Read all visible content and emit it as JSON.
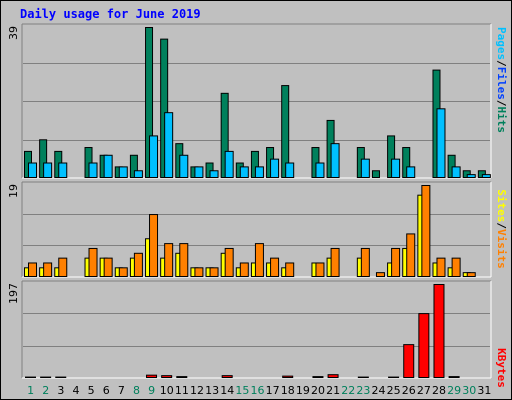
{
  "title": "Daily usage for June 2019",
  "colors": {
    "title": "#0000ff",
    "hits": "#00805c",
    "files": "#0040ff",
    "pages": "#00c0ff",
    "visits": "#ff8000",
    "sites": "#ffff00",
    "kbytes": "#ff0000",
    "day_weekday": "#000000",
    "day_weekend": "#00805c"
  },
  "chart_data": [
    {
      "type": "bar",
      "panel": "hits-files-pages",
      "ymax": 39,
      "ymax_label": "39",
      "side_label": [
        "Pages",
        "/",
        "Files",
        "/",
        "Hits"
      ],
      "categories": [
        "1",
        "2",
        "3",
        "4",
        "5",
        "6",
        "7",
        "8",
        "9",
        "10",
        "11",
        "12",
        "13",
        "14",
        "15",
        "16",
        "17",
        "18",
        "19",
        "20",
        "21",
        "22",
        "23",
        "24",
        "25",
        "26",
        "27",
        "28",
        "29",
        "30",
        "31"
      ],
      "weekend_days": [
        "1",
        "2",
        "8",
        "9",
        "15",
        "16",
        "22",
        "23",
        "29",
        "30"
      ],
      "series": [
        {
          "name": "Hits",
          "values": [
            7,
            10,
            7,
            0,
            8,
            6,
            3,
            6,
            39,
            36,
            9,
            3,
            4,
            22,
            4,
            7,
            8,
            24,
            0,
            8,
            15,
            0,
            8,
            2,
            11,
            8,
            0,
            28,
            6,
            2,
            2
          ]
        },
        {
          "name": "Pages",
          "values": [
            4,
            4,
            4,
            0,
            4,
            6,
            3,
            2,
            11,
            17,
            6,
            3,
            2,
            7,
            3,
            3,
            5,
            4,
            0,
            4,
            9,
            0,
            5,
            0,
            5,
            3,
            0,
            18,
            3,
            1,
            1
          ]
        }
      ]
    },
    {
      "type": "bar",
      "panel": "visits-sites",
      "ymax": 19,
      "ymax_label": "19",
      "side_label": [
        "Sites",
        "/",
        "Visits"
      ],
      "series": [
        {
          "name": "Sites",
          "values": [
            2,
            2,
            2,
            0,
            4,
            4,
            2,
            4,
            8,
            4,
            5,
            2,
            2,
            5,
            2,
            3,
            3,
            2,
            0,
            3,
            4,
            0,
            4,
            0,
            3,
            6,
            17,
            3,
            2,
            1,
            0
          ]
        },
        {
          "name": "Visits",
          "values": [
            3,
            3,
            4,
            0,
            6,
            4,
            2,
            5,
            13,
            7,
            7,
            2,
            2,
            6,
            3,
            7,
            4,
            3,
            0,
            3,
            6,
            0,
            6,
            1,
            6,
            9,
            19,
            4,
            4,
            1,
            0
          ]
        }
      ]
    },
    {
      "type": "bar",
      "panel": "kbytes",
      "ymax": 197,
      "ymax_label": "197",
      "side_label": [
        "KBytes"
      ],
      "series": [
        {
          "name": "KBytes",
          "values": [
            3,
            3,
            3,
            0,
            2,
            2,
            2,
            2,
            7,
            6,
            4,
            2,
            2,
            6,
            2,
            2,
            2,
            5,
            0,
            4,
            8,
            0,
            3,
            2,
            3,
            71,
            136,
            197,
            4,
            2,
            0
          ]
        }
      ]
    }
  ]
}
